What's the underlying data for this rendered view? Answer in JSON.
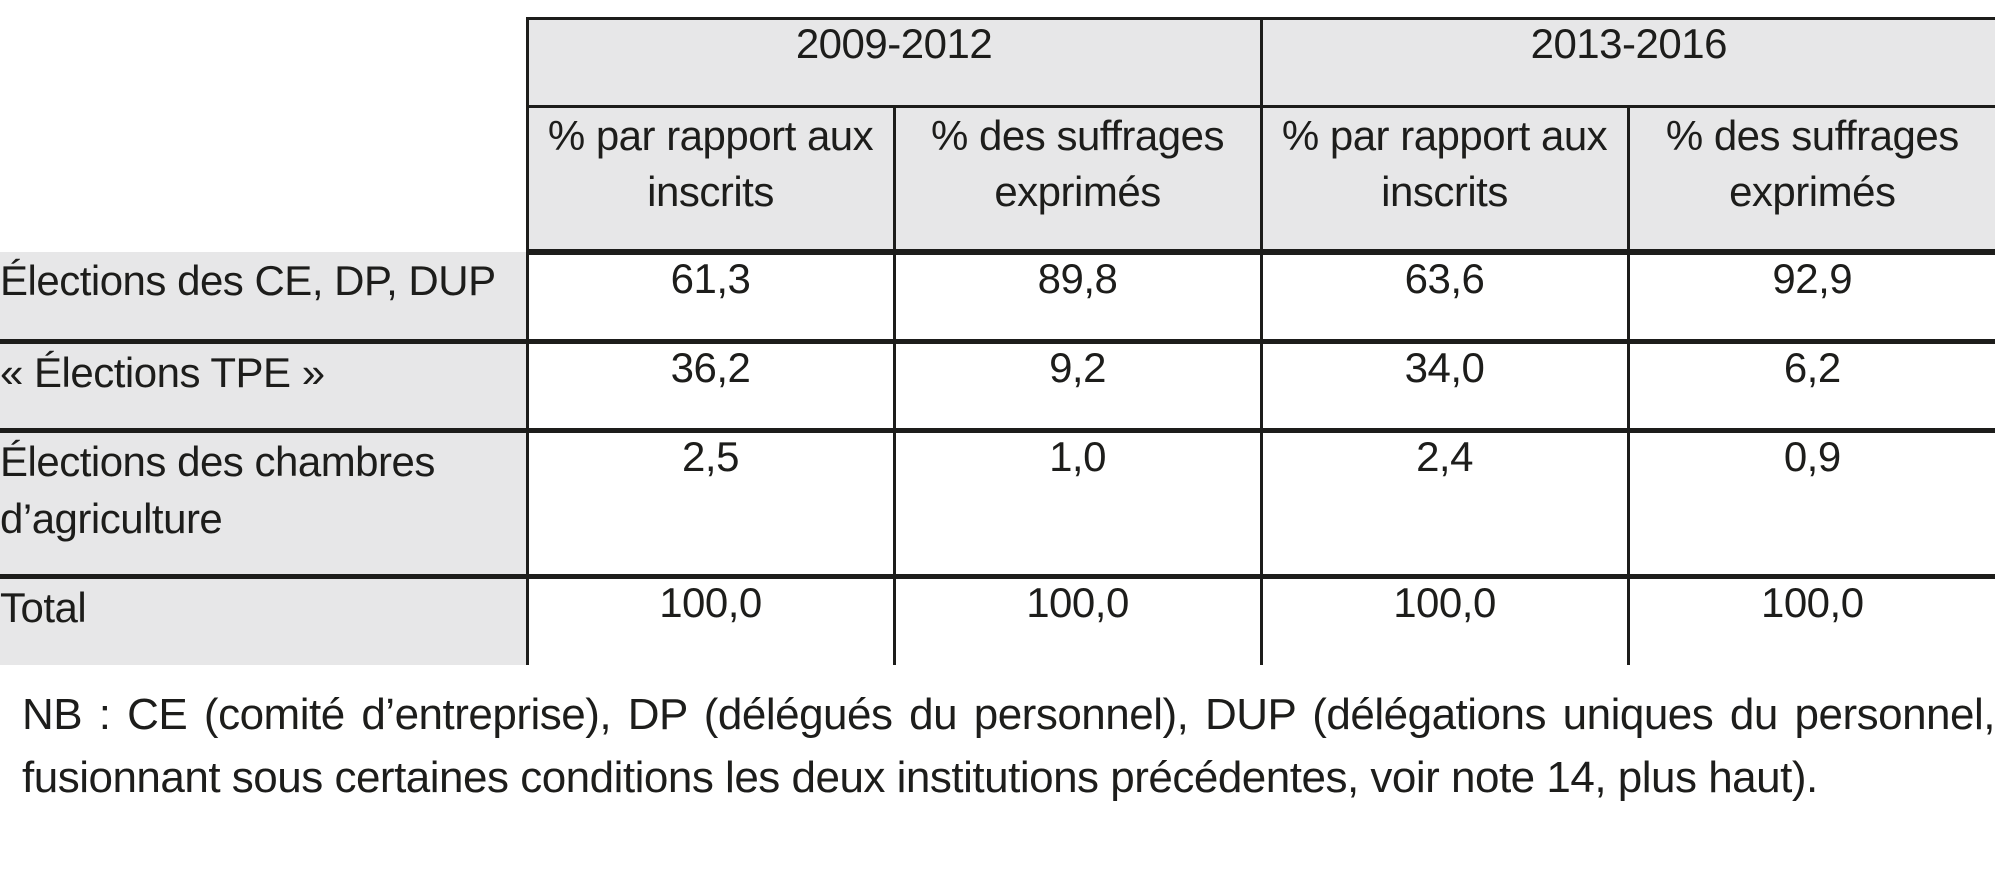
{
  "chart_data": {
    "type": "table",
    "title": "",
    "period_groups": [
      {
        "label": "2009-2012"
      },
      {
        "label": "2013-2016"
      }
    ],
    "measure_columns": [
      "% par rapport aux inscrits",
      "% des suffrages exprimés",
      "% par rapport aux inscrits",
      "% des suffrages exprimés"
    ],
    "rows": [
      {
        "label": "Élections des CE, DP, DUP",
        "values": [
          61.3,
          89.8,
          63.6,
          92.9
        ],
        "values_display": [
          "61,3",
          "89,8",
          "63,6",
          "92,9"
        ]
      },
      {
        "label": "« Élections TPE »",
        "values": [
          36.2,
          9.2,
          34.0,
          6.2
        ],
        "values_display": [
          "36,2",
          "9,2",
          "34,0",
          "6,2"
        ]
      },
      {
        "label": "Élections des chambres d’agriculture",
        "values": [
          2.5,
          1.0,
          2.4,
          0.9
        ],
        "values_display": [
          "2,5",
          "1,0",
          "2,4",
          "0,9"
        ]
      },
      {
        "label": "Total",
        "values": [
          100.0,
          100.0,
          100.0,
          100.0
        ],
        "values_display": [
          "100,0",
          "100,0",
          "100,0",
          "100,0"
        ]
      }
    ],
    "note": "NB : CE (comité d’entreprise), DP (délégués du personnel), DUP (délégations uniques du personnel, fusionnant sous certaines conditions les deux institutions précédentes, voir note 14, plus haut)."
  },
  "colors": {
    "header_bg": "#e7e7e8",
    "border": "#1d1d1b",
    "text": "#1d1d1b",
    "background": "#ffffff"
  }
}
